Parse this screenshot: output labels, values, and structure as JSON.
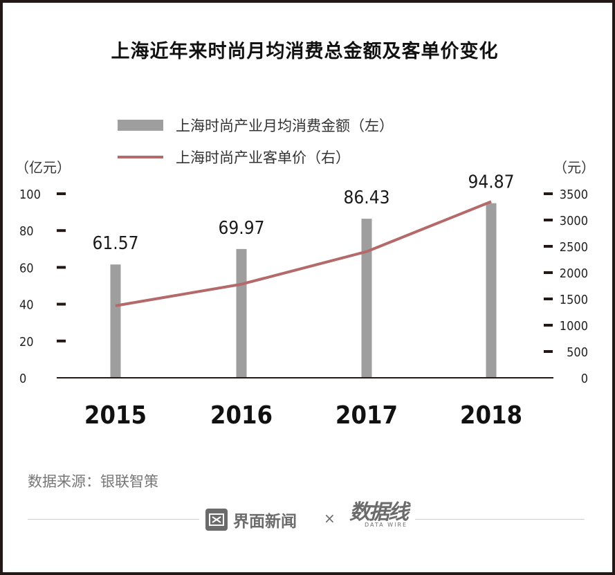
{
  "title": "上海近年来时尚月均消费总金额及客单价变化",
  "legend": {
    "bar": "上海时尚产业月均消费金额（左）",
    "line": "上海时尚产业客单价（右）"
  },
  "units": {
    "left": "（亿元）",
    "right": "（元）"
  },
  "source": "数据来源：银联智策",
  "brand": {
    "jiemian": "界面新闻",
    "times": "×",
    "datawire": "数据线",
    "datawire_sub": "DATA WIRE"
  },
  "colors": {
    "bar": "#9e9e9e",
    "line": "#b4696a",
    "axis": "#231815"
  },
  "chart_data": {
    "type": "bar",
    "categories": [
      "2015",
      "2016",
      "2017",
      "2018"
    ],
    "series": [
      {
        "name": "上海时尚产业月均消费金额（左）",
        "type": "bar",
        "axis": "left",
        "values": [
          61.57,
          69.97,
          86.43,
          94.87
        ],
        "data_labels": [
          "61.57",
          "69.97",
          "86.43",
          "94.87"
        ]
      },
      {
        "name": "上海时尚产业客单价（右）",
        "type": "line",
        "axis": "right",
        "values": [
          1370,
          1780,
          2400,
          3350
        ]
      }
    ],
    "y_left": {
      "range": [
        0,
        100
      ],
      "ticks": [
        "0",
        "20",
        "40",
        "60",
        "80",
        "100"
      ]
    },
    "y_right": {
      "range": [
        0,
        3500
      ],
      "ticks": [
        "0",
        "500",
        "1000",
        "1500",
        "2000",
        "2500",
        "3000",
        "3500"
      ]
    },
    "grid": false,
    "legend_position": "top"
  }
}
